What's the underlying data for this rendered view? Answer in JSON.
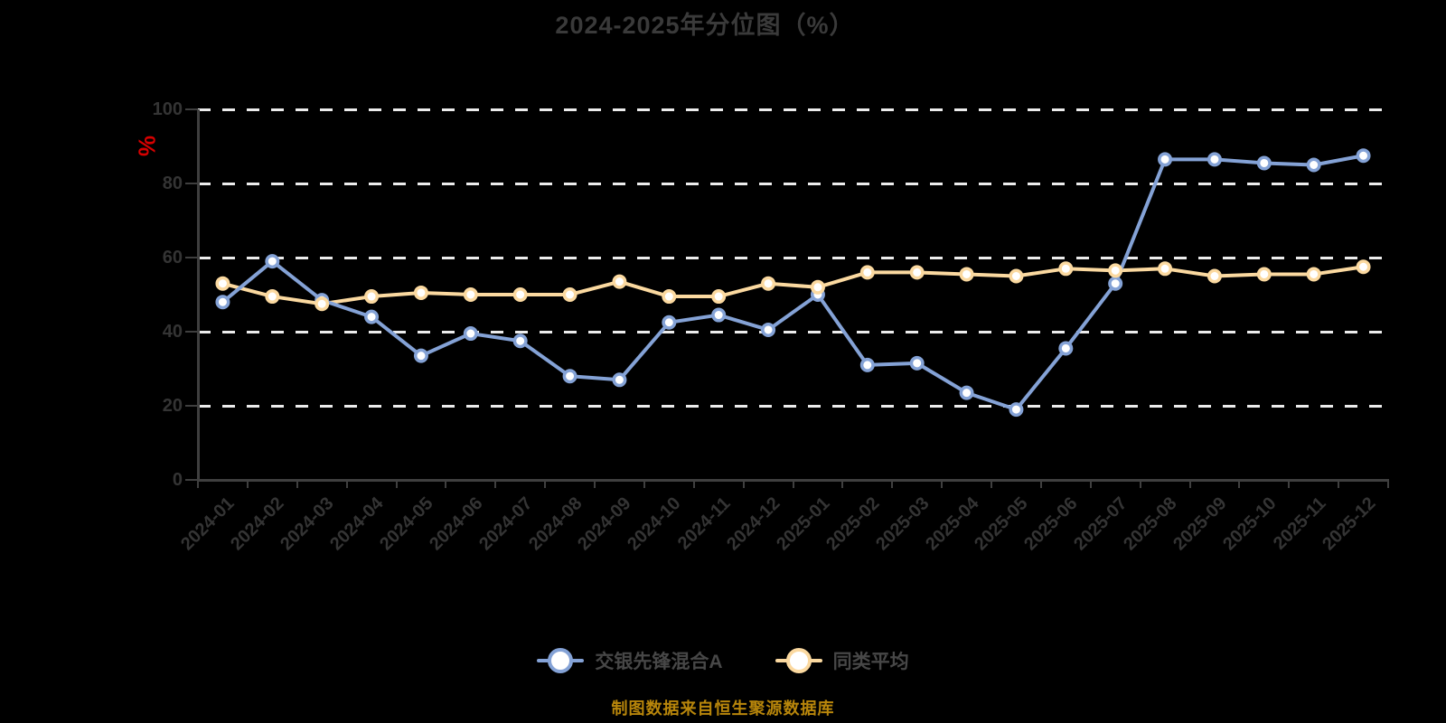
{
  "title": "2024-2025年分位图（%）",
  "y_axis_unit_label": "%",
  "footer": "制图数据来自恒生聚源数据库",
  "colors": {
    "background": "#000000",
    "title_text": "#3a3a3a",
    "axis_line": "#3f3f3f",
    "axis_label_text": "#343434",
    "gridline": "#ececec",
    "unit_label_red": "#d60000",
    "legend_text": "#474747",
    "footer_gold": "#b8860b",
    "fund_blue": "#84a2d6",
    "peer_yellow": "#fbd9a0"
  },
  "chart_data": {
    "type": "line",
    "title": "2024-2025年分位图（%）",
    "ylabel": "%",
    "ylim": [
      0,
      100
    ],
    "y_ticks": [
      0,
      20,
      40,
      60,
      80,
      100
    ],
    "grid": "horizontal dashed white lines",
    "legend_position": "bottom",
    "categories": [
      "2024-01",
      "2024-02",
      "2024-03",
      "2024-04",
      "2024-05",
      "2024-06",
      "2024-07",
      "2024-08",
      "2024-09",
      "2024-10",
      "2024-11",
      "2024-12",
      "2025-01",
      "2025-02",
      "2025-03",
      "2025-04",
      "2025-05",
      "2025-06",
      "2025-07",
      "2025-08",
      "2025-09",
      "2025-10",
      "2025-11",
      "2025-12"
    ],
    "series": [
      {
        "id": "fund",
        "name": "交银先锋混合A",
        "color": "#84a2d6",
        "values": [
          48,
          59,
          48.5,
          44,
          33.5,
          39.5,
          37.5,
          28,
          27,
          42.5,
          44.5,
          40.5,
          50,
          31,
          31.5,
          23.5,
          19,
          35.5,
          53,
          86.5,
          86.5,
          85.5,
          85,
          87.5
        ]
      },
      {
        "id": "peer-avg",
        "name": "同类平均",
        "color": "#fbd9a0",
        "values": [
          53,
          49.5,
          47.5,
          49.5,
          50.5,
          50,
          50,
          50,
          53.5,
          49.5,
          49.5,
          53,
          52,
          56,
          56,
          55.5,
          55,
          57,
          56.5,
          57,
          55,
          55.5,
          55.5,
          57.5
        ]
      }
    ]
  }
}
